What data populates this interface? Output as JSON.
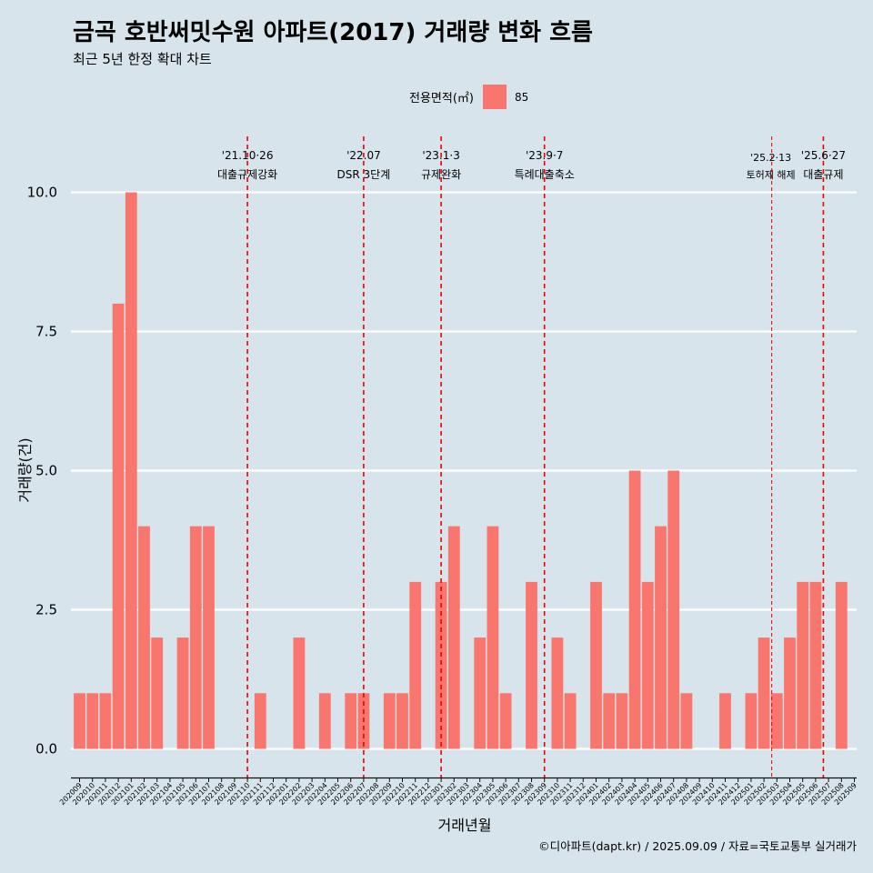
{
  "chart_data": {
    "type": "bar",
    "title": "금곡 호반써밋수원 아파트(2017) 거래량 변화 흐름",
    "subtitle": "최근 5년 한정 확대 차트",
    "xlabel": "거래년월",
    "ylabel": "거래량(건)",
    "caption": "©디아파트(dapt.kr) / 2025.09.09 / 자료=국토교통부 실거래가",
    "legend": {
      "title": "전용면적(㎡)",
      "position": "top",
      "items": [
        {
          "label": "85",
          "color": "#f8766d"
        }
      ]
    },
    "ylim": [
      0,
      10
    ],
    "yticks": [
      0.0,
      2.5,
      5.0,
      7.5,
      10.0
    ],
    "ytick_labels": [
      "0.0",
      "2.5",
      "5.0",
      "7.5",
      "10.0"
    ],
    "grid": true,
    "colors": {
      "bar": "#f8766d",
      "background": "#d7e4eb",
      "grid": "#ffffff",
      "event_line": "#ee0000"
    },
    "categories": [
      "202009",
      "202010",
      "202011",
      "202012",
      "202101",
      "202102",
      "202103",
      "202104",
      "202105",
      "202106",
      "202107",
      "202108",
      "202109",
      "202110",
      "202111",
      "202112",
      "202201",
      "202202",
      "202203",
      "202204",
      "202205",
      "202206",
      "202207",
      "202208",
      "202209",
      "202210",
      "202211",
      "202212",
      "202301",
      "202302",
      "202303",
      "202304",
      "202305",
      "202306",
      "202307",
      "202308",
      "202309",
      "202310",
      "202311",
      "202312",
      "202401",
      "202402",
      "202403",
      "202404",
      "202405",
      "202406",
      "202407",
      "202408",
      "202409",
      "202410",
      "202411",
      "202412",
      "202501",
      "202502",
      "202503",
      "202504",
      "202505",
      "202506",
      "202507",
      "202508",
      "202509"
    ],
    "series": [
      {
        "name": "85",
        "values": [
          1,
          1,
          1,
          8,
          10,
          4,
          2,
          0,
          2,
          4,
          4,
          0,
          0,
          0,
          1,
          0,
          0,
          2,
          0,
          1,
          0,
          1,
          1,
          0,
          1,
          1,
          3,
          0,
          3,
          4,
          0,
          2,
          4,
          1,
          0,
          3,
          0,
          2,
          1,
          0,
          3,
          1,
          1,
          5,
          3,
          4,
          5,
          1,
          0,
          0,
          1,
          0,
          1,
          2,
          1,
          2,
          3,
          3,
          0,
          3,
          0
        ]
      }
    ],
    "events": [
      {
        "position": 13.0,
        "date": "'21.10·26",
        "label": "대출규제강화",
        "style": "main"
      },
      {
        "position": 22.0,
        "date": "'22.07",
        "label": "DSR 3단계",
        "style": "main"
      },
      {
        "position": 28.0,
        "date": "'23.1·3",
        "label": "규제완화",
        "style": "main"
      },
      {
        "position": 36.0,
        "date": "'23.9·7",
        "label": "특례대출축소",
        "style": "main"
      },
      {
        "position": 53.6,
        "date": "'25.2·13",
        "label": "토허제 해제",
        "style": "minor"
      },
      {
        "position": 57.6,
        "date": "'25.6·27",
        "label": "대출규제",
        "style": "main"
      }
    ]
  }
}
